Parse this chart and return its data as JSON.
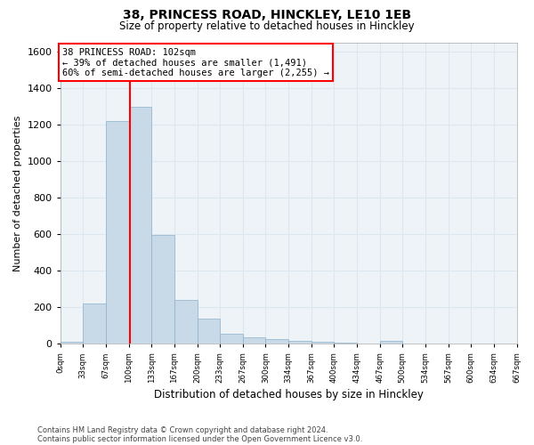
{
  "title1": "38, PRINCESS ROAD, HINCKLEY, LE10 1EB",
  "title2": "Size of property relative to detached houses in Hinckley",
  "xlabel": "Distribution of detached houses by size in Hinckley",
  "ylabel": "Number of detached properties",
  "footer1": "Contains HM Land Registry data © Crown copyright and database right 2024.",
  "footer2": "Contains public sector information licensed under the Open Government Licence v3.0.",
  "annotation_line1": "38 PRINCESS ROAD: 102sqm",
  "annotation_line2": "← 39% of detached houses are smaller (1,491)",
  "annotation_line3": "60% of semi-detached houses are larger (2,255) →",
  "bar_color": "#c8d9e8",
  "bar_edge_color": "#8ab0cc",
  "red_line_x": 102,
  "bin_width": 33.333,
  "num_bins": 20,
  "bar_heights": [
    10,
    220,
    1220,
    1295,
    595,
    240,
    135,
    55,
    35,
    25,
    15,
    10,
    5,
    0,
    15,
    0,
    0,
    0,
    0,
    0
  ],
  "ylim": [
    0,
    1650
  ],
  "yticks": [
    0,
    200,
    400,
    600,
    800,
    1000,
    1200,
    1400,
    1600
  ],
  "xtick_labels": [
    "0sqm",
    "33sqm",
    "67sqm",
    "100sqm",
    "133sqm",
    "167sqm",
    "200sqm",
    "233sqm",
    "267sqm",
    "300sqm",
    "334sqm",
    "367sqm",
    "400sqm",
    "434sqm",
    "467sqm",
    "500sqm",
    "534sqm",
    "567sqm",
    "600sqm",
    "634sqm",
    "667sqm"
  ],
  "grid_color": "#dce8f0",
  "background_color": "#eef3f8",
  "fig_bg": "#ffffff"
}
